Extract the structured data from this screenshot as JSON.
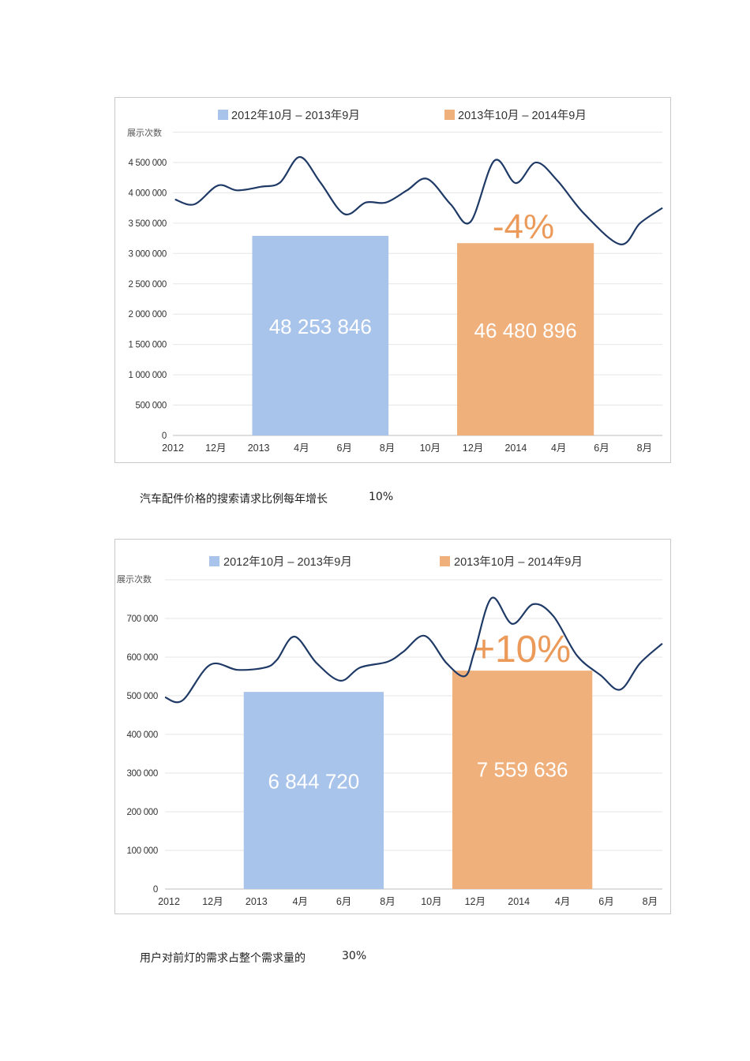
{
  "chart_data": [
    {
      "type": "bar+line",
      "legend": [
        "2012年10月 – 2013年9月",
        "2013年10月 – 2014年9月"
      ],
      "legend_placement": "top",
      "ylabel": "展示次数",
      "ylim": [
        0,
        5000000
      ],
      "yticks": [
        0,
        500000,
        1000000,
        1500000,
        2000000,
        2500000,
        3000000,
        3500000,
        4000000,
        4500000
      ],
      "ytick_labels": [
        "0",
        "500 000",
        "1 000 000",
        "1 500 000",
        "2 000 000",
        "2 500 000",
        "3 000 000",
        "3 500 000",
        "4 000 000",
        "4 500 000"
      ],
      "xtick_labels": [
        "2012",
        "12月",
        "2013",
        "4月",
        "6月",
        "8月",
        "10月",
        "12月",
        "2014",
        "4月",
        "6月",
        "8月"
      ],
      "grid": true,
      "bars": [
        {
          "value": 3290000,
          "span_ticks": [
            1.85,
            5.03
          ],
          "label": "48 253 846",
          "color": "#a9c4ea"
        },
        {
          "value": 3170000,
          "span_ticks": [
            6.63,
            9.82
          ],
          "label": "46 480 896",
          "color": "#f0b07c"
        }
      ],
      "annotation": {
        "text": "-4%",
        "color": "#ec9a5a"
      },
      "line": {
        "color": "#1f3a66",
        "x_tick_index": [
          0.05,
          0.5,
          1.05,
          1.5,
          2.06,
          2.5,
          2.96,
          3.44,
          4.0,
          4.5,
          4.97,
          5.46,
          5.93,
          6.48,
          6.94,
          7.5,
          8.0,
          8.47,
          8.97,
          9.6,
          10.44,
          10.9,
          11.42
        ],
        "values": [
          3890000,
          3810000,
          4120000,
          4040000,
          4100000,
          4170000,
          4590000,
          4170000,
          3650000,
          3840000,
          3840000,
          4040000,
          4230000,
          3810000,
          3520000,
          4530000,
          4160000,
          4500000,
          4200000,
          3650000,
          3150000,
          3500000,
          3750000
        ]
      }
    },
    {
      "type": "bar+line",
      "legend": [
        "2012年10月 – 2013年9月",
        "2013年10月 – 2014年9月"
      ],
      "legend_placement": "top",
      "ylabel": "展示次数",
      "ylim": [
        0,
        800000
      ],
      "yticks": [
        0,
        100000,
        200000,
        300000,
        400000,
        500000,
        600000,
        700000
      ],
      "ytick_labels": [
        "0",
        "100 000",
        "200 000",
        "300 000",
        "400 000",
        "500 000",
        "600 000",
        "700 000"
      ],
      "xtick_labels": [
        "2012",
        "12月",
        "2013",
        "4月",
        "6月",
        "8月",
        "10月",
        "12月",
        "2014",
        "4月",
        "6月",
        "8月"
      ],
      "grid": true,
      "bars": [
        {
          "value": 510000,
          "span_ticks": [
            1.71,
            4.91
          ],
          "label": "6 844 720",
          "color": "#a9c4ea"
        },
        {
          "value": 565000,
          "span_ticks": [
            6.48,
            9.68
          ],
          "label": "7 559 636",
          "color": "#f0b07c"
        }
      ],
      "annotation": {
        "text": "+10%",
        "color": "#ec9a5a"
      },
      "line": {
        "color": "#1f3a66",
        "x_tick_index": [
          -0.09,
          0.31,
          0.94,
          1.57,
          2.2,
          2.47,
          2.87,
          3.38,
          3.92,
          4.37,
          5.0,
          5.36,
          5.85,
          6.35,
          6.77,
          6.99,
          7.38,
          7.85,
          8.33,
          8.79,
          9.33,
          9.87,
          10.32,
          10.77,
          11.28
        ],
        "values": [
          496000,
          488000,
          580000,
          567000,
          573000,
          593000,
          653000,
          584000,
          539000,
          573000,
          588000,
          614000,
          655000,
          584000,
          551000,
          616000,
          753000,
          686000,
          737000,
          706000,
          604000,
          553000,
          516000,
          584000,
          635000
        ]
      }
    }
  ],
  "captions": [
    {
      "text": "汽车配件价格的搜索请求比例每年增长",
      "value": "10%"
    },
    {
      "text": "用户对前灯的需求占整个需求量的",
      "value": "30%"
    }
  ]
}
